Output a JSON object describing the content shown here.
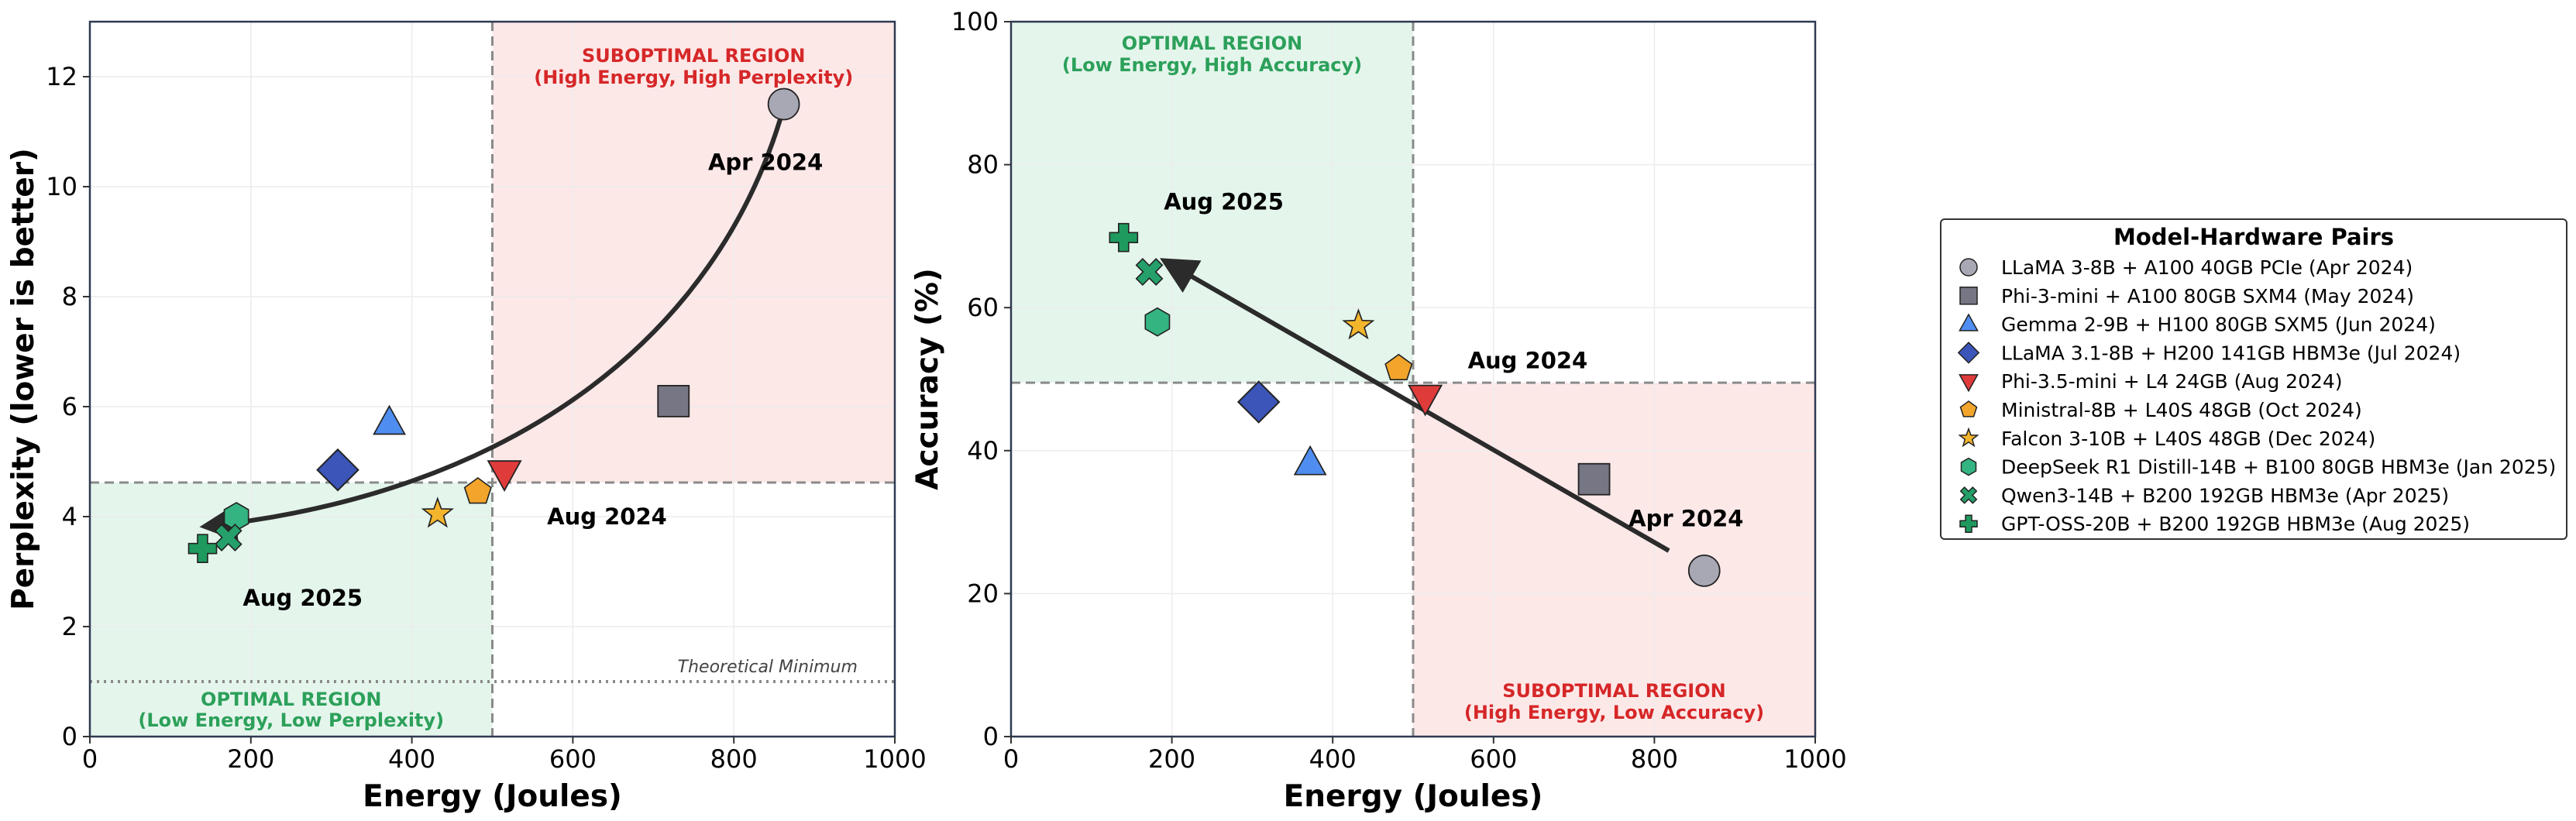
{
  "chart_data": [
    {
      "type": "scatter",
      "xlabel": "Energy (Joules)",
      "ylabel": "Perplexity (lower is better)",
      "xlim": [
        0,
        1000
      ],
      "ylim": [
        0,
        13
      ],
      "xticks": [
        "0",
        "200",
        "400",
        "600",
        "800",
        "1000"
      ],
      "yticks": [
        "0",
        "2",
        "4",
        "6",
        "8",
        "10",
        "12"
      ],
      "grid": true,
      "threshold_x": 500,
      "threshold_y": 4.62,
      "optimal_region": {
        "line1": "OPTIMAL REGION",
        "line2": "(Low Energy, Low Perplexity)",
        "color": "#2ca05a"
      },
      "suboptimal_region": {
        "line1": "SUBOPTIMAL REGION",
        "line2": "(High Energy, High Perplexity)",
        "color": "#d62728"
      },
      "theoretical_minimum": {
        "value": 1,
        "label": "Theoretical Minimum"
      },
      "trend_labels": {
        "start": "Apr 2024",
        "mid": "Aug 2024",
        "end": "Aug 2025"
      },
      "points": [
        {
          "x": 862,
          "y": 11.5
        },
        {
          "x": 725,
          "y": 6.1
        },
        {
          "x": 372,
          "y": 5.7
        },
        {
          "x": 308,
          "y": 4.85
        },
        {
          "x": 515,
          "y": 4.8
        },
        {
          "x": 482,
          "y": 4.45
        },
        {
          "x": 432,
          "y": 4.05
        },
        {
          "x": 182,
          "y": 4.0
        },
        {
          "x": 172,
          "y": 3.62
        },
        {
          "x": 140,
          "y": 3.42
        }
      ]
    },
    {
      "type": "scatter",
      "xlabel": "Energy (Joules)",
      "ylabel": "Accuracy (%)",
      "xlim": [
        0,
        1000
      ],
      "ylim": [
        0,
        100
      ],
      "xticks": [
        "0",
        "200",
        "400",
        "600",
        "800",
        "1000"
      ],
      "yticks": [
        "0",
        "20",
        "40",
        "60",
        "80",
        "100"
      ],
      "grid": true,
      "threshold_x": 500,
      "threshold_y": 49.5,
      "optimal_region": {
        "line1": "OPTIMAL REGION",
        "line2": "(Low Energy, High Accuracy)",
        "color": "#2ca05a"
      },
      "suboptimal_region": {
        "line1": "SUBOPTIMAL REGION",
        "line2": "(High Energy, Low Accuracy)",
        "color": "#d62728"
      },
      "trend_labels": {
        "start": "Apr 2024",
        "mid": "Aug 2024",
        "end": "Aug 2025"
      },
      "points": [
        {
          "x": 862,
          "y": 23.2
        },
        {
          "x": 725,
          "y": 36.0
        },
        {
          "x": 372,
          "y": 38.2
        },
        {
          "x": 308,
          "y": 46.8
        },
        {
          "x": 515,
          "y": 47.5
        },
        {
          "x": 482,
          "y": 51.5
        },
        {
          "x": 432,
          "y": 57.5
        },
        {
          "x": 182,
          "y": 58.0
        },
        {
          "x": 172,
          "y": 65.0
        },
        {
          "x": 140,
          "y": 69.8
        }
      ]
    }
  ],
  "legend": {
    "title": "Model-Hardware Pairs",
    "placement": "right",
    "entries": [
      {
        "label": "LLaMA 3-8B + A100 40GB PCIe (Apr 2024)",
        "marker": "circle",
        "color": "#a8a8b4"
      },
      {
        "label": "Phi-3-mini + A100 80GB SXM4 (May 2024)",
        "marker": "square",
        "color": "#767684"
      },
      {
        "label": "Gemma 2-9B + H100 80GB SXM5 (Jun 2024)",
        "marker": "triangle-up",
        "color": "#4f8ef0"
      },
      {
        "label": "LLaMA 3.1-8B + H200 141GB HBM3e (Jul 2024)",
        "marker": "diamond",
        "color": "#3b55b8"
      },
      {
        "label": "Phi-3.5-mini + L4 24GB (Aug 2024)",
        "marker": "triangle-down",
        "color": "#e03b3b"
      },
      {
        "label": "Ministral-8B + L40S 48GB (Oct 2024)",
        "marker": "pentagon",
        "color": "#f2a52a"
      },
      {
        "label": "Falcon 3-10B + L40S 48GB (Dec 2024)",
        "marker": "star",
        "color": "#f3b52c"
      },
      {
        "label": "DeepSeek R1 Distill-14B + B100 80GB HBM3e (Jan 2025)",
        "marker": "hexagon",
        "color": "#34b481"
      },
      {
        "label": "Qwen3-14B + B200 192GB HBM3e (Apr 2025)",
        "marker": "x",
        "color": "#25a06a"
      },
      {
        "label": "GPT-OSS-20B + B200 192GB HBM3e (Aug 2025)",
        "marker": "plus",
        "color": "#1f9a5e"
      }
    ]
  }
}
